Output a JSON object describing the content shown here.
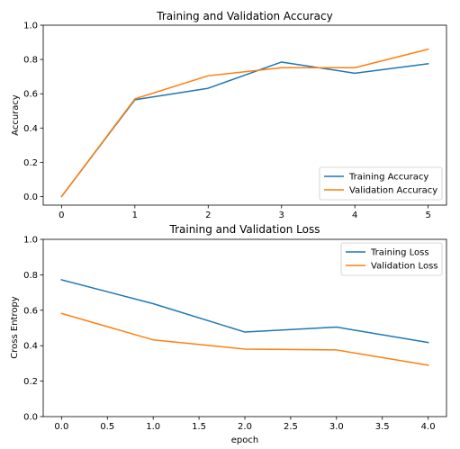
{
  "chart_data": [
    {
      "type": "line",
      "title": "Training and Validation Accuracy",
      "xlabel": "",
      "ylabel": "Accuracy",
      "xlim": [
        -0.25,
        5.25
      ],
      "ylim": [
        -0.05,
        1.0
      ],
      "xticks": [
        0,
        1,
        2,
        3,
        4,
        5
      ],
      "xtick_labels": [
        "0",
        "1",
        "2",
        "3",
        "4",
        "5"
      ],
      "yticks": [
        0.0,
        0.2,
        0.4,
        0.6,
        0.8,
        1.0
      ],
      "ytick_labels": [
        "0.0",
        "0.2",
        "0.4",
        "0.6",
        "0.8",
        "1.0"
      ],
      "grid": false,
      "legend_position": "lower-right",
      "x": [
        0,
        1,
        2,
        3,
        4,
        5
      ],
      "series": [
        {
          "name": "Training Accuracy",
          "color": "#1f77b4",
          "values": [
            0.0,
            0.565,
            0.632,
            0.785,
            0.72,
            0.775
          ]
        },
        {
          "name": "Validation Accuracy",
          "color": "#ff7f0e",
          "values": [
            0.0,
            0.57,
            0.705,
            0.752,
            0.752,
            0.86
          ]
        }
      ]
    },
    {
      "type": "line",
      "title": "Training and Validation Loss",
      "xlabel": "epoch",
      "ylabel": "Cross Entropy",
      "xlim": [
        -0.2,
        4.2
      ],
      "ylim": [
        0.0,
        1.0
      ],
      "xticks": [
        0.0,
        0.5,
        1.0,
        1.5,
        2.0,
        2.5,
        3.0,
        3.5,
        4.0
      ],
      "xtick_labels": [
        "0.0",
        "0.5",
        "1.0",
        "1.5",
        "2.0",
        "2.5",
        "3.0",
        "3.5",
        "4.0"
      ],
      "yticks": [
        0.0,
        0.2,
        0.4,
        0.6,
        0.8,
        1.0
      ],
      "ytick_labels": [
        "0.0",
        "0.2",
        "0.4",
        "0.6",
        "0.8",
        "1.0"
      ],
      "grid": false,
      "legend_position": "upper-right",
      "x": [
        0,
        1,
        2,
        3,
        4
      ],
      "series": [
        {
          "name": "Training Loss",
          "color": "#1f77b4",
          "values": [
            0.772,
            0.637,
            0.477,
            0.505,
            0.418
          ]
        },
        {
          "name": "Validation Loss",
          "color": "#ff7f0e",
          "values": [
            0.582,
            0.433,
            0.381,
            0.376,
            0.29
          ]
        }
      ]
    }
  ]
}
